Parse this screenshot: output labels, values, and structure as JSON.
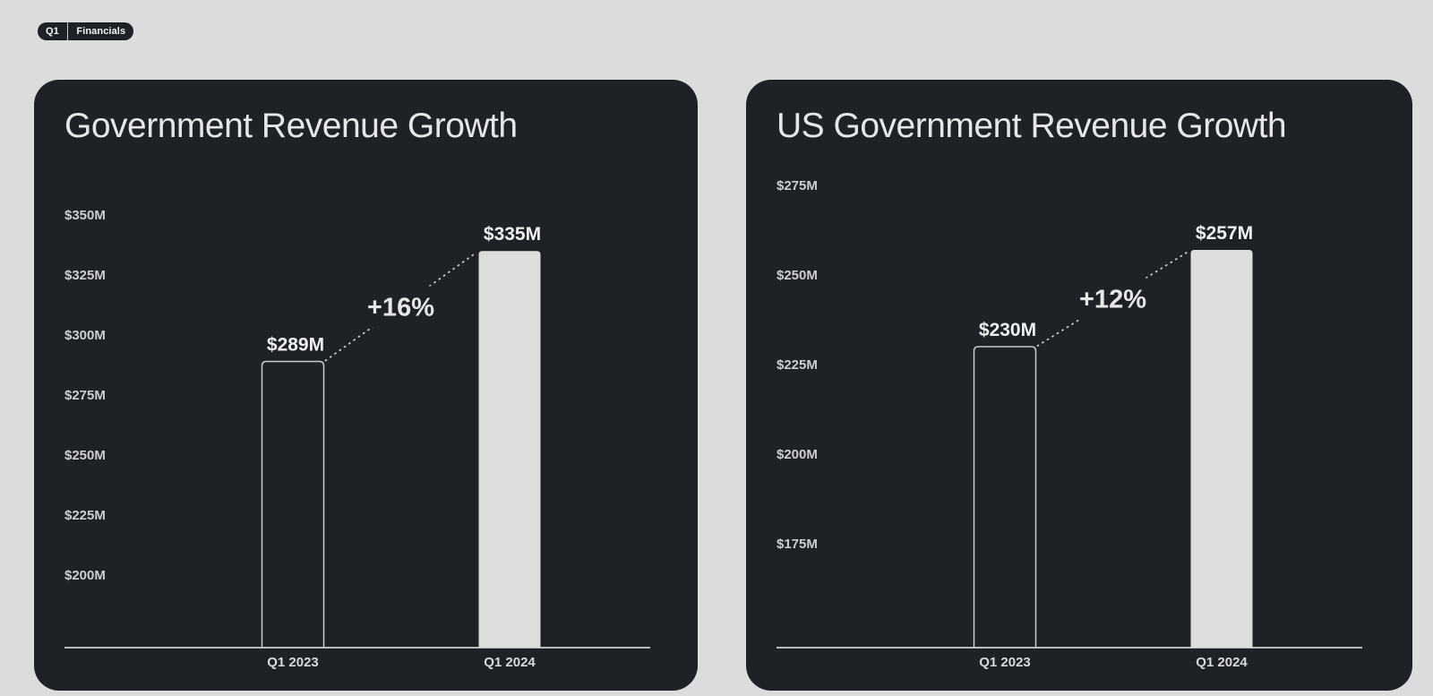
{
  "badge": {
    "items": [
      "Q1",
      "Financials"
    ]
  },
  "theme": {
    "page_background": "#dbdcdd",
    "card_background": "#1e2227",
    "title_color": "#e5e6e7",
    "bar_fill": "#dcdddd",
    "bar_outline": "#c9cbcc",
    "axis_color": "#b8babc",
    "dotted_line_color": "#cbcdce"
  },
  "chart_data": [
    {
      "type": "bar",
      "title": "Government Revenue Growth",
      "categories": [
        "Q1 2023",
        "Q1 2024"
      ],
      "values": [
        289,
        335
      ],
      "value_labels": [
        "$289M",
        "$335M"
      ],
      "growth_annotation": "+16%",
      "ytick_values": [
        350,
        325,
        300,
        275,
        250,
        225,
        200
      ],
      "ytick_labels": [
        "$350M",
        "$325M",
        "$300M",
        "$275M",
        "$250M",
        "$225M",
        "$200M"
      ],
      "ylim": [
        175,
        350
      ],
      "xlabel": "",
      "ylabel": "",
      "grid": false,
      "legend": false,
      "bar_styles": [
        "outline",
        "filled"
      ]
    },
    {
      "type": "bar",
      "title": "US Government Revenue Growth",
      "categories": [
        "Q1 2023",
        "Q1 2024"
      ],
      "values": [
        230,
        257
      ],
      "value_labels": [
        "$230M",
        "$257M"
      ],
      "growth_annotation": "+12%",
      "ytick_values": [
        275,
        250,
        225,
        200,
        175
      ],
      "ytick_labels": [
        "$275M",
        "$250M",
        "$225M",
        "$200M",
        "$175M"
      ],
      "ylim": [
        150,
        275
      ],
      "xlabel": "",
      "ylabel": "",
      "grid": false,
      "legend": false,
      "bar_styles": [
        "outline",
        "filled"
      ]
    }
  ]
}
